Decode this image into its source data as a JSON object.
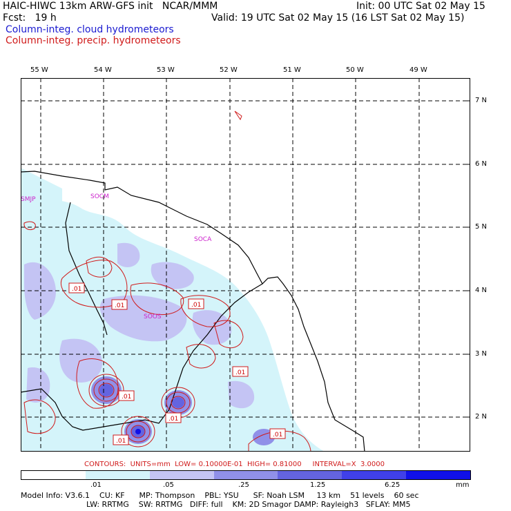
{
  "header": {
    "title_left": "HAIC-HIWC 13km ARW-GFS init   NCAR/MMM",
    "init": "Init: 00 UTC Sat 02 May 15",
    "fcst": "Fcst:   19 h",
    "valid": "Valid: 19 UTC Sat 02 May 15 (16 LST Sat 02 May 15)",
    "field1": "Column-integ. cloud hydrometeors",
    "field2": "Column-integ. precip. hydrometeors"
  },
  "map": {
    "lon_labels": [
      "55 W",
      "54 W",
      "53 W",
      "52 W",
      "51 W",
      "50 W",
      "49 W"
    ],
    "lat_labels": [
      "7 N",
      "6 N",
      "5 N",
      "4 N",
      "3 N",
      "2 N"
    ],
    "stations": [
      "SMJP",
      "SOCM",
      "SOCA",
      "SOOS"
    ],
    "contour_labels": [
      ".01",
      ".01",
      ".01",
      ".01",
      ".01",
      ".01",
      ".01",
      ".01"
    ]
  },
  "contour_info": "CONTOURS:  UNITS=mm  LOW= 0.10000E-01  HIGH= 0.81000     INTERVAL=X  3.0000",
  "colorbar": {
    "ticks": [
      ".01",
      ".05",
      ".25",
      "1.25",
      "6.25"
    ],
    "units": "mm",
    "colors": [
      "#ffffff",
      "#d4f4fa",
      "#c4c4f4",
      "#9090e8",
      "#6464e0",
      "#4040e8",
      "#1010e8"
    ]
  },
  "footer": {
    "line1": "Model Info: V3.6.1    CU: KF      MP: Thompson    PBL: YSU      SF: Noah LSM     13 km    51 levels    60 sec",
    "line2": "LW: RRTMG    SW: RRTMG   DIFF: full    KM: 2D Smagor DAMP: Rayleigh3   SFLAY: MM5"
  }
}
